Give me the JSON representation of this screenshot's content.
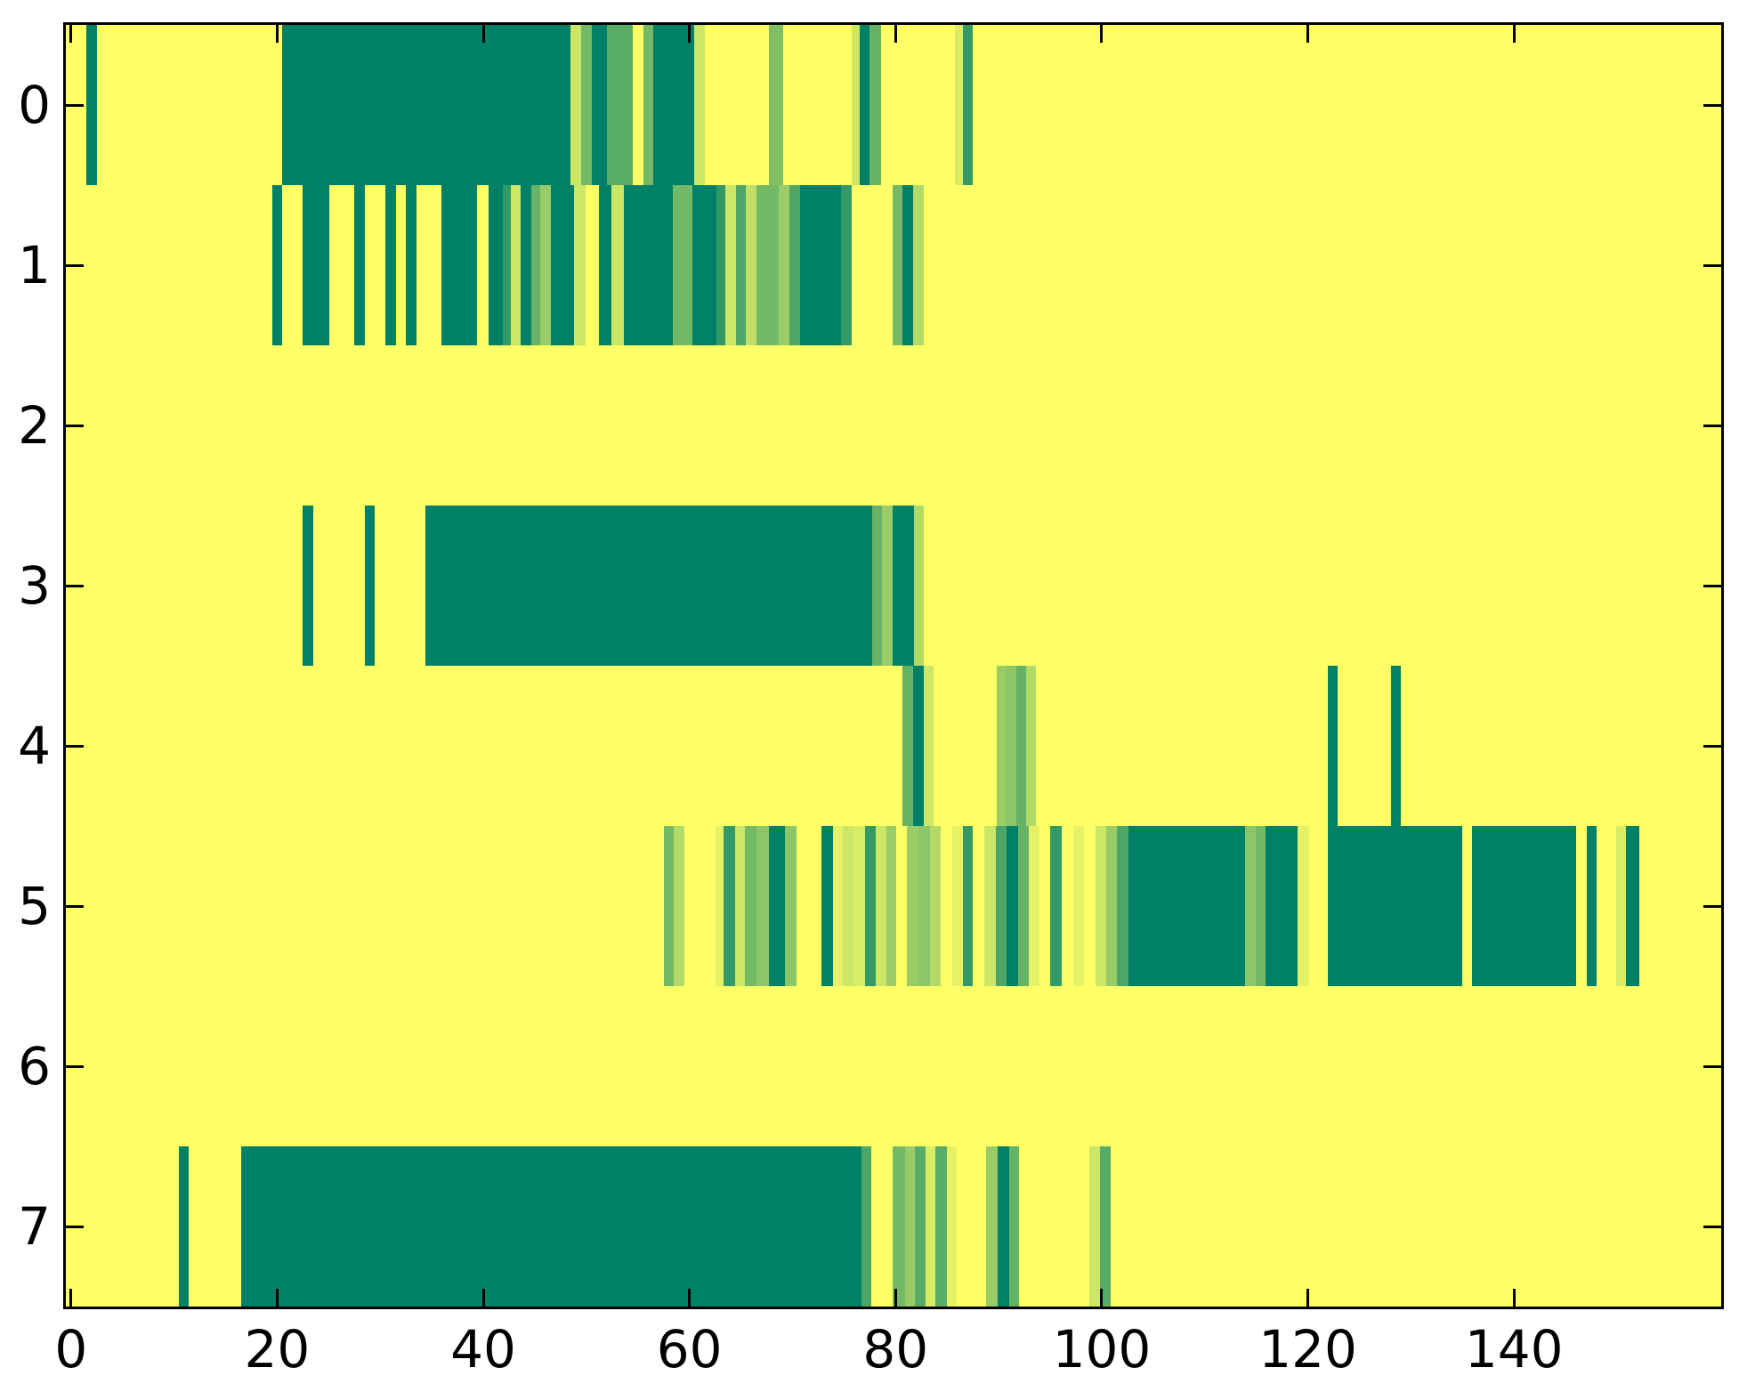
{
  "chart_data": {
    "type": "heatmap",
    "title": "",
    "xlabel": "",
    "ylabel": "",
    "x_ticks": [
      "0",
      "20",
      "40",
      "60",
      "80",
      "100",
      "120",
      "140"
    ],
    "x_tick_values": [
      0,
      20,
      40,
      60,
      80,
      100,
      120,
      140
    ],
    "y_ticks": [
      "0",
      "1",
      "2",
      "3",
      "4",
      "5",
      "6",
      "7"
    ],
    "y_tick_values": [
      0,
      1,
      2,
      3,
      4,
      5,
      6,
      7
    ],
    "x_range": [
      -0.5,
      160.1
    ],
    "n_rows": 8,
    "grid": false,
    "legend": "none",
    "colormap": "summer",
    "colormap_note": "value t in [0,1]; t=0 dark teal #008066, t=1 yellow #ffff66, color = rgb(255t, 128+127t, 102)",
    "background_value": 1,
    "background_color": "#ffff66",
    "axis_color": "#000000",
    "rows": [
      {
        "label": "0",
        "segments": [
          [
            2,
            3,
            0
          ],
          [
            21,
            49,
            0
          ],
          [
            49,
            50,
            0.8
          ],
          [
            50,
            51,
            0.45
          ],
          [
            51,
            52.5,
            0
          ],
          [
            52.5,
            55,
            0.35
          ],
          [
            56,
            57,
            0.45
          ],
          [
            57,
            61,
            0
          ],
          [
            61,
            62,
            0.8
          ],
          [
            68.2,
            69.6,
            0.5
          ],
          [
            76.2,
            77,
            0.8
          ],
          [
            77,
            78,
            0
          ],
          [
            78,
            79.1,
            0.4
          ],
          [
            86.3,
            87,
            0.85
          ],
          [
            87,
            88,
            0.2
          ]
        ]
      },
      {
        "label": "1",
        "segments": [
          [
            20,
            21,
            0
          ],
          [
            23,
            25.6,
            0
          ],
          [
            28,
            29,
            0
          ],
          [
            31,
            32,
            0
          ],
          [
            33,
            34,
            0
          ],
          [
            36.4,
            39.9,
            0
          ],
          [
            41,
            42.4,
            0
          ],
          [
            42.4,
            43.2,
            0.2
          ],
          [
            43.2,
            44.1,
            0.8
          ],
          [
            44.1,
            45.2,
            0
          ],
          [
            45.2,
            46,
            0.4
          ],
          [
            46,
            47.1,
            0.6
          ],
          [
            47.1,
            49.3,
            0
          ],
          [
            49.3,
            50.4,
            0.8
          ],
          [
            51.7,
            52.9,
            0
          ],
          [
            52.9,
            54.1,
            0.8
          ],
          [
            54.1,
            58.9,
            0
          ],
          [
            58.9,
            60.8,
            0.45
          ],
          [
            60.8,
            63.1,
            0
          ],
          [
            63.1,
            64,
            0.2
          ],
          [
            64,
            65,
            0.8
          ],
          [
            65,
            66,
            0.3
          ],
          [
            66,
            67,
            0.75
          ],
          [
            67,
            69.2,
            0.45
          ],
          [
            69.2,
            70.2,
            0.6
          ],
          [
            70.2,
            71.2,
            0.3
          ],
          [
            71.2,
            75.2,
            0
          ],
          [
            75.2,
            76.2,
            0.2
          ],
          [
            80.2,
            81.2,
            0.45
          ],
          [
            81.2,
            82.2,
            0
          ],
          [
            82.2,
            83.2,
            0.7
          ]
        ]
      },
      {
        "label": "2",
        "segments": []
      },
      {
        "label": "3",
        "segments": [
          [
            23,
            24,
            0
          ],
          [
            29,
            30,
            0
          ],
          [
            34.9,
            78.2,
            0
          ],
          [
            78.2,
            79.2,
            0.4
          ],
          [
            79.2,
            80.2,
            0.6
          ],
          [
            80.2,
            82.3,
            0
          ],
          [
            82.3,
            83.2,
            0.7
          ]
        ]
      },
      {
        "label": "4",
        "segments": [
          [
            81.2,
            82.2,
            0.4
          ],
          [
            82.2,
            83.2,
            0
          ],
          [
            83.2,
            84.2,
            0.8
          ],
          [
            90.3,
            91.2,
            0.6
          ],
          [
            91.2,
            92.2,
            0.55
          ],
          [
            92.2,
            93.2,
            0.4
          ],
          [
            93.2,
            94.1,
            0.7
          ],
          [
            122.4,
            123.4,
            0
          ],
          [
            128.6,
            129.5,
            0
          ]
        ]
      },
      {
        "label": "5",
        "segments": [
          [
            58,
            59,
            0.45
          ],
          [
            59,
            60,
            0.7
          ],
          [
            63,
            63.8,
            0.9
          ],
          [
            63.8,
            64.9,
            0.2
          ],
          [
            64.9,
            65.9,
            0.8
          ],
          [
            65.9,
            67,
            0.45
          ],
          [
            67,
            68.2,
            0.55
          ],
          [
            68.2,
            69.8,
            0
          ],
          [
            69.8,
            70.9,
            0.55
          ],
          [
            73.3,
            74.4,
            0
          ],
          [
            74.4,
            75.4,
            0.9
          ],
          [
            75.4,
            76.4,
            0.8
          ],
          [
            76.4,
            77.5,
            0.85
          ],
          [
            77.5,
            78.6,
            0.2
          ],
          [
            78.6,
            79.6,
            0.8
          ],
          [
            79.6,
            80.6,
            0.6
          ],
          [
            81.6,
            82.7,
            0.6
          ],
          [
            82.7,
            83.8,
            0.55
          ],
          [
            83.8,
            84.9,
            0.7
          ],
          [
            86,
            87,
            0.9
          ],
          [
            87,
            88,
            0.2
          ],
          [
            89.1,
            90.2,
            0.8
          ],
          [
            90.2,
            91.3,
            0.3
          ],
          [
            91.3,
            92.4,
            0
          ],
          [
            92.4,
            93.4,
            0.4
          ],
          [
            93.4,
            94.5,
            0.9
          ],
          [
            95.5,
            96.6,
            0.2
          ],
          [
            97.7,
            98.8,
            0.9
          ],
          [
            99.9,
            100.9,
            0.8
          ],
          [
            100.9,
            102,
            0.6
          ],
          [
            102,
            103.1,
            0.3
          ],
          [
            103.1,
            114.4,
            0
          ],
          [
            114.4,
            115.4,
            0.55
          ],
          [
            115.4,
            116.4,
            0.45
          ],
          [
            116.4,
            119.5,
            0
          ],
          [
            119.5,
            120.6,
            0.9
          ],
          [
            122.4,
            135.5,
            0
          ],
          [
            136.4,
            146.5,
            0
          ],
          [
            147.6,
            148.5,
            0
          ],
          [
            150.4,
            151.4,
            0.85
          ],
          [
            151.4,
            152.7,
            0
          ]
        ]
      },
      {
        "label": "6",
        "segments": []
      },
      {
        "label": "7",
        "segments": [
          [
            11,
            11.9,
            0
          ],
          [
            17,
            77.2,
            0
          ],
          [
            77.2,
            78.1,
            0.3
          ],
          [
            80.2,
            81.4,
            0.45
          ],
          [
            81.4,
            82.4,
            0.6
          ],
          [
            82.4,
            83.4,
            0.35
          ],
          [
            83.4,
            84.4,
            0.85
          ],
          [
            84.4,
            85.5,
            0.35
          ],
          [
            85.5,
            86.4,
            0.9
          ],
          [
            89.3,
            90.4,
            0.6
          ],
          [
            90.4,
            91.5,
            0
          ],
          [
            91.5,
            92.5,
            0.4
          ],
          [
            99.3,
            100.3,
            0.8
          ],
          [
            100.3,
            101.4,
            0.35
          ]
        ]
      }
    ]
  }
}
